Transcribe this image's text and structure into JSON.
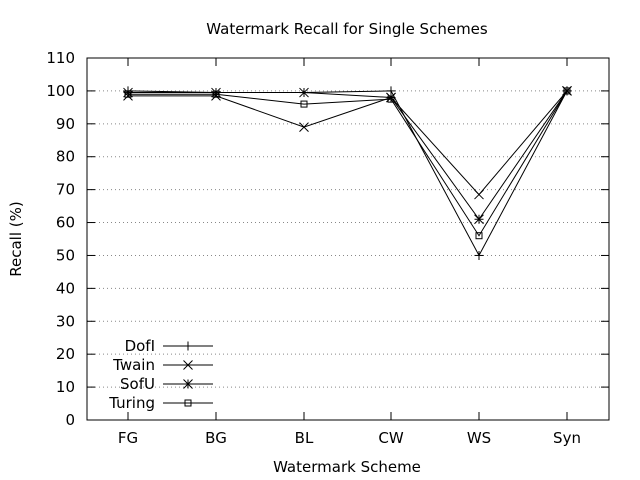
{
  "chart_data": {
    "type": "line",
    "title": "Watermark Recall for Single Schemes",
    "xlabel": "Watermark Scheme",
    "ylabel": "Recall (%)",
    "categories": [
      "FG",
      "BG",
      "BL",
      "CW",
      "WS",
      "Syn"
    ],
    "ylim": [
      0,
      110
    ],
    "yticks": [
      0,
      10,
      20,
      30,
      40,
      50,
      60,
      70,
      80,
      90,
      100,
      110
    ],
    "grid": "horizontal dotted",
    "legend_position": "bottom-left",
    "series": [
      {
        "name": "DofI",
        "marker": "plus",
        "values": [
          100,
          99.5,
          99.5,
          100,
          50,
          100
        ]
      },
      {
        "name": "Twain",
        "marker": "cross",
        "values": [
          98.5,
          98.5,
          89,
          98,
          68.5,
          100
        ]
      },
      {
        "name": "SofU",
        "marker": "star",
        "values": [
          99.5,
          99.5,
          99.5,
          98,
          61,
          100
        ]
      },
      {
        "name": "Turing",
        "marker": "square",
        "values": [
          99,
          99,
          96,
          97.5,
          56,
          100
        ]
      }
    ]
  }
}
